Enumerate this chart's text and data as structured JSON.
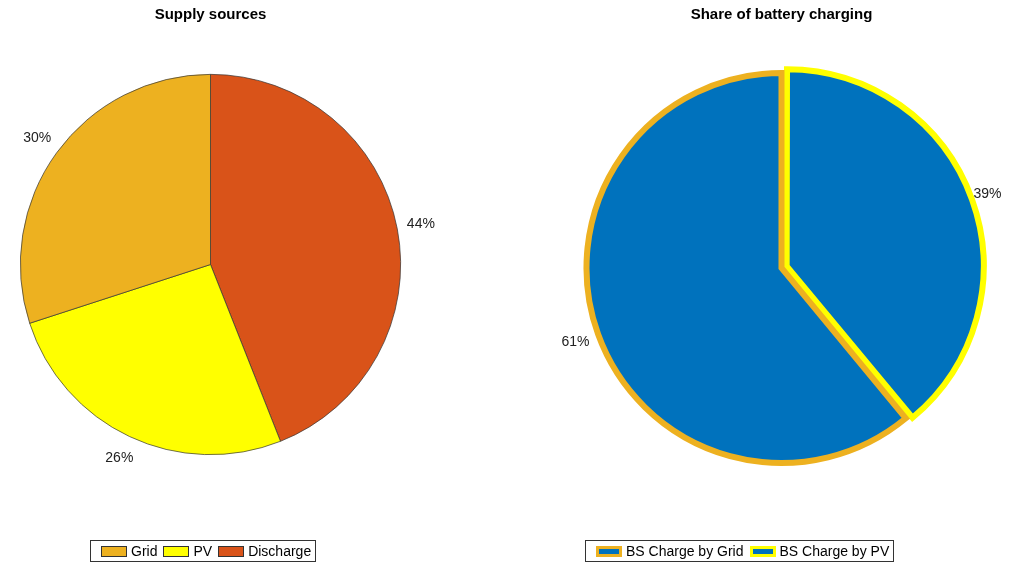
{
  "chart_data": [
    {
      "type": "pie",
      "title": "Supply sources",
      "categories": [
        "Grid",
        "PV",
        "Discharge"
      ],
      "values": [
        30,
        26,
        44
      ],
      "colors": [
        "#edb120",
        "#ffff00",
        "#d95319"
      ],
      "value_labels": [
        "30%",
        "26%",
        "44%"
      ],
      "legend": "bottom"
    },
    {
      "type": "pie",
      "title": "Share of battery charging",
      "categories": [
        "BS Charge by Grid",
        "BS Charge by PV"
      ],
      "values": [
        61,
        39
      ],
      "colors": [
        "#0072bd",
        "#0072bd"
      ],
      "value_labels": [
        "61%",
        "39%"
      ],
      "legend": "bottom"
    }
  ]
}
